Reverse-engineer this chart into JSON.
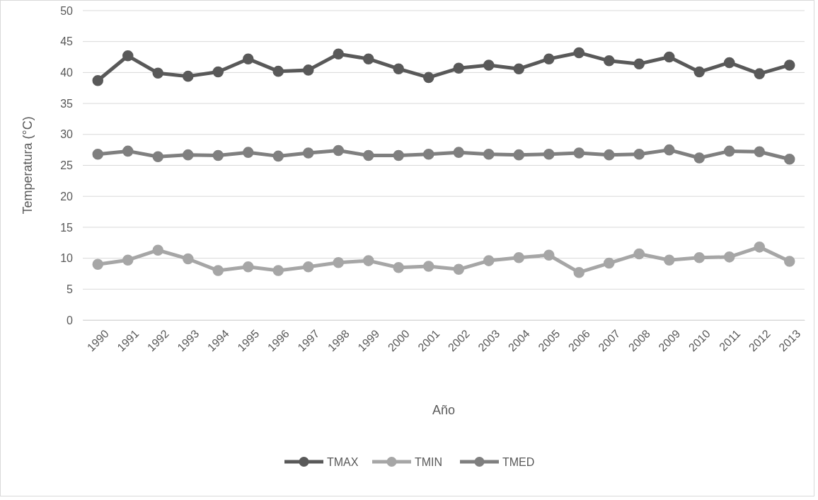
{
  "chart_data": {
    "type": "line",
    "xlabel": "Año",
    "ylabel": "Temperatura (°C)",
    "categories": [
      "1990",
      "1991",
      "1992",
      "1993",
      "1994",
      "1995",
      "1996",
      "1997",
      "1998",
      "1999",
      "2000",
      "2001",
      "2002",
      "2003",
      "2004",
      "2005",
      "2006",
      "2007",
      "2008",
      "2009",
      "2010",
      "2011",
      "2012",
      "2013"
    ],
    "series": [
      {
        "name": "TMAX",
        "color": "#595959",
        "values": [
          38.7,
          42.7,
          39.9,
          39.4,
          40.1,
          42.2,
          40.2,
          40.4,
          43.0,
          42.2,
          40.6,
          39.2,
          40.7,
          41.2,
          40.6,
          42.2,
          43.2,
          41.9,
          41.4,
          42.5,
          40.1,
          41.6,
          39.8,
          41.2
        ]
      },
      {
        "name": "TMIN",
        "color": "#a6a6a6",
        "values": [
          9.0,
          9.7,
          11.3,
          9.9,
          8.0,
          8.6,
          8.0,
          8.6,
          9.3,
          9.6,
          8.5,
          8.7,
          8.2,
          9.6,
          10.1,
          10.5,
          7.7,
          9.2,
          10.7,
          9.7,
          10.1,
          10.2,
          11.8,
          9.5
        ]
      },
      {
        "name": "TMED",
        "color": "#7f7f7f",
        "values": [
          26.8,
          27.3,
          26.4,
          26.7,
          26.6,
          27.1,
          26.5,
          27.0,
          27.4,
          26.6,
          26.6,
          26.8,
          27.1,
          26.8,
          26.7,
          26.8,
          27.0,
          26.7,
          26.8,
          27.5,
          26.2,
          27.3,
          27.2,
          26.0
        ]
      }
    ],
    "ylim": [
      0,
      50
    ],
    "yticks": [
      0,
      5,
      10,
      15,
      20,
      25,
      30,
      35,
      40,
      45,
      50
    ],
    "grid": "y",
    "legend": "bottom",
    "marker": "circle",
    "line_style": "solid"
  }
}
